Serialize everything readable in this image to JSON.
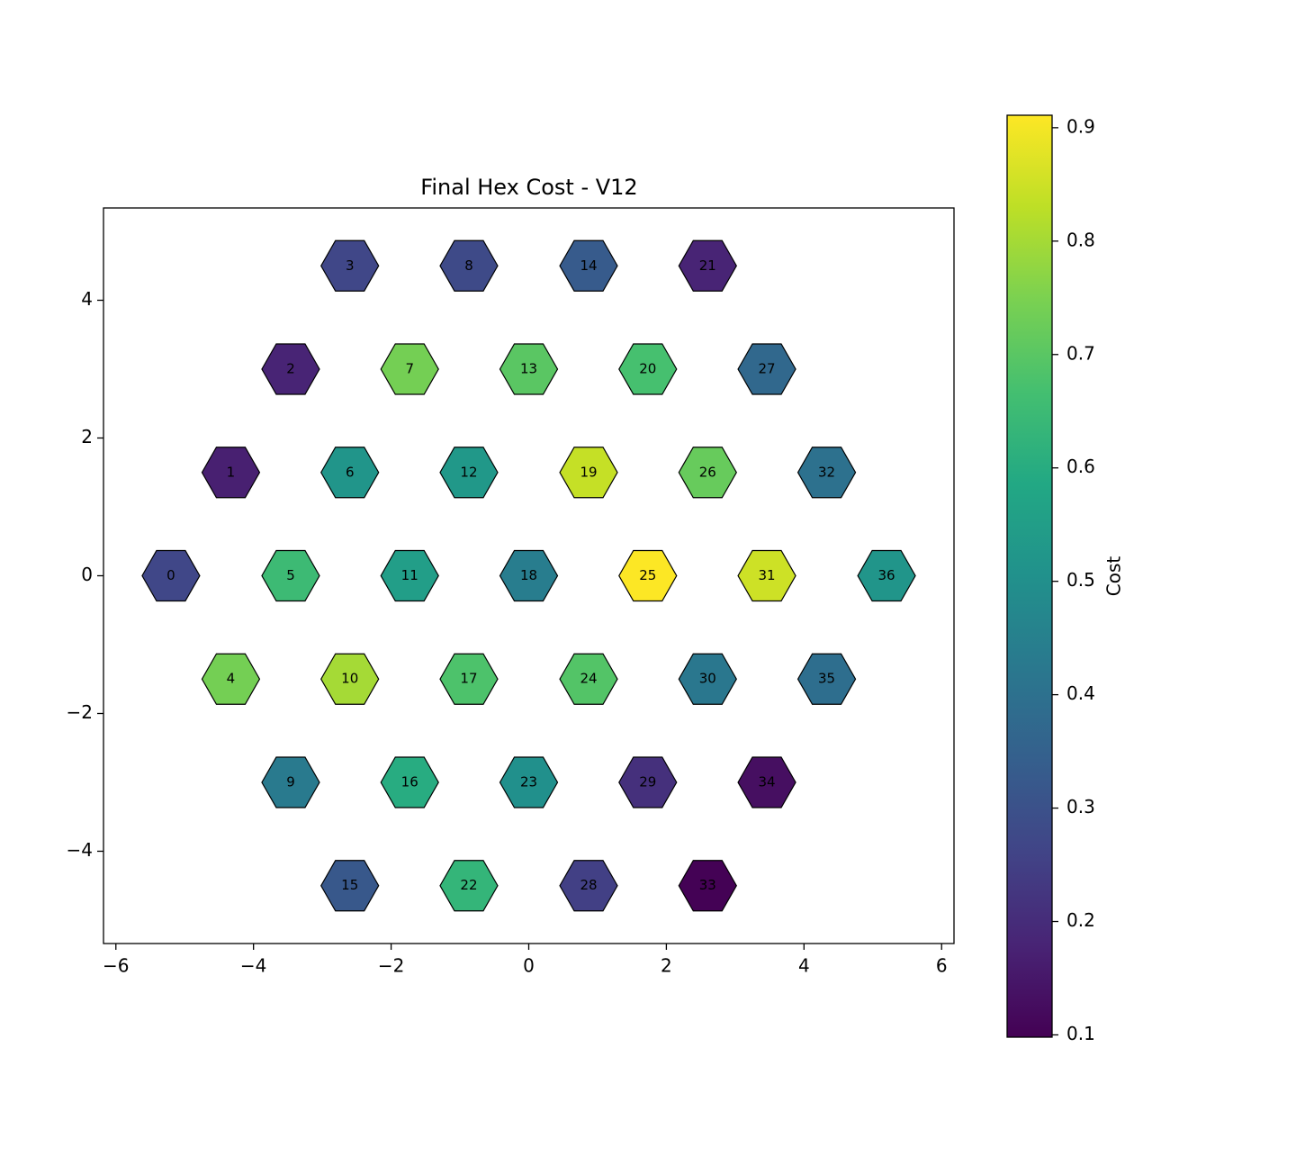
{
  "chart_data": {
    "type": "hexmap",
    "title": "Final Hex Cost - V12",
    "labels": [
      "0",
      "1",
      "2",
      "3",
      "4",
      "5",
      "6",
      "7",
      "8",
      "9",
      "10",
      "11",
      "12",
      "13",
      "14",
      "15",
      "16",
      "17",
      "18",
      "19",
      "20",
      "21",
      "22",
      "23",
      "24",
      "25",
      "26",
      "27",
      "28",
      "29",
      "30",
      "31",
      "32",
      "33",
      "34",
      "35",
      "36"
    ],
    "x": [
      -5.2,
      -4.33,
      -3.46,
      -2.6,
      -4.33,
      -3.46,
      -2.6,
      -1.73,
      -0.87,
      -3.46,
      -2.6,
      -1.73,
      -0.87,
      0,
      0.87,
      -2.6,
      -1.73,
      -0.87,
      0,
      0.87,
      1.73,
      2.6,
      -0.87,
      0,
      0.87,
      1.73,
      2.6,
      3.46,
      0.87,
      1.73,
      2.6,
      3.46,
      4.33,
      2.6,
      3.46,
      4.33,
      5.2
    ],
    "y": [
      0,
      1.5,
      3,
      4.5,
      -1.5,
      0,
      1.5,
      3,
      4.5,
      -3,
      -1.5,
      0,
      1.5,
      3,
      4.5,
      -4.5,
      -3,
      -1.5,
      0,
      1.5,
      3,
      4.5,
      -4.5,
      -3,
      -1.5,
      0,
      1.5,
      3,
      -4.5,
      -3,
      -1.5,
      0,
      1.5,
      -4.5,
      -3,
      -1.5,
      0
    ],
    "values": [
      0.27,
      0.17,
      0.18,
      0.27,
      0.74,
      0.65,
      0.52,
      0.74,
      0.28,
      0.43,
      0.8,
      0.55,
      0.53,
      0.7,
      0.33,
      0.32,
      0.6,
      0.68,
      0.44,
      0.84,
      0.67,
      0.18,
      0.63,
      0.5,
      0.69,
      0.91,
      0.72,
      0.37,
      0.25,
      0.21,
      0.42,
      0.85,
      0.4,
      0.1,
      0.13,
      0.39,
      0.52
    ],
    "colormap": "viridis",
    "colorbar_label": "Cost",
    "clim": [
      0.098,
      0.911
    ],
    "cticks": [
      0.1,
      0.2,
      0.3,
      0.4,
      0.5,
      0.6,
      0.7,
      0.8,
      0.9
    ],
    "xlim": [
      -6.18,
      6.18
    ],
    "xticks": [
      {
        "value": -6,
        "label": "−6"
      },
      {
        "value": -4,
        "label": "−4"
      },
      {
        "value": -2,
        "label": "−2"
      },
      0,
      2,
      4,
      6
    ],
    "ylim": [
      -5.34,
      5.34
    ],
    "yticks": [
      {
        "value": -4,
        "label": "−4"
      },
      {
        "value": -2,
        "label": "−2"
      },
      0,
      2,
      4
    ]
  }
}
